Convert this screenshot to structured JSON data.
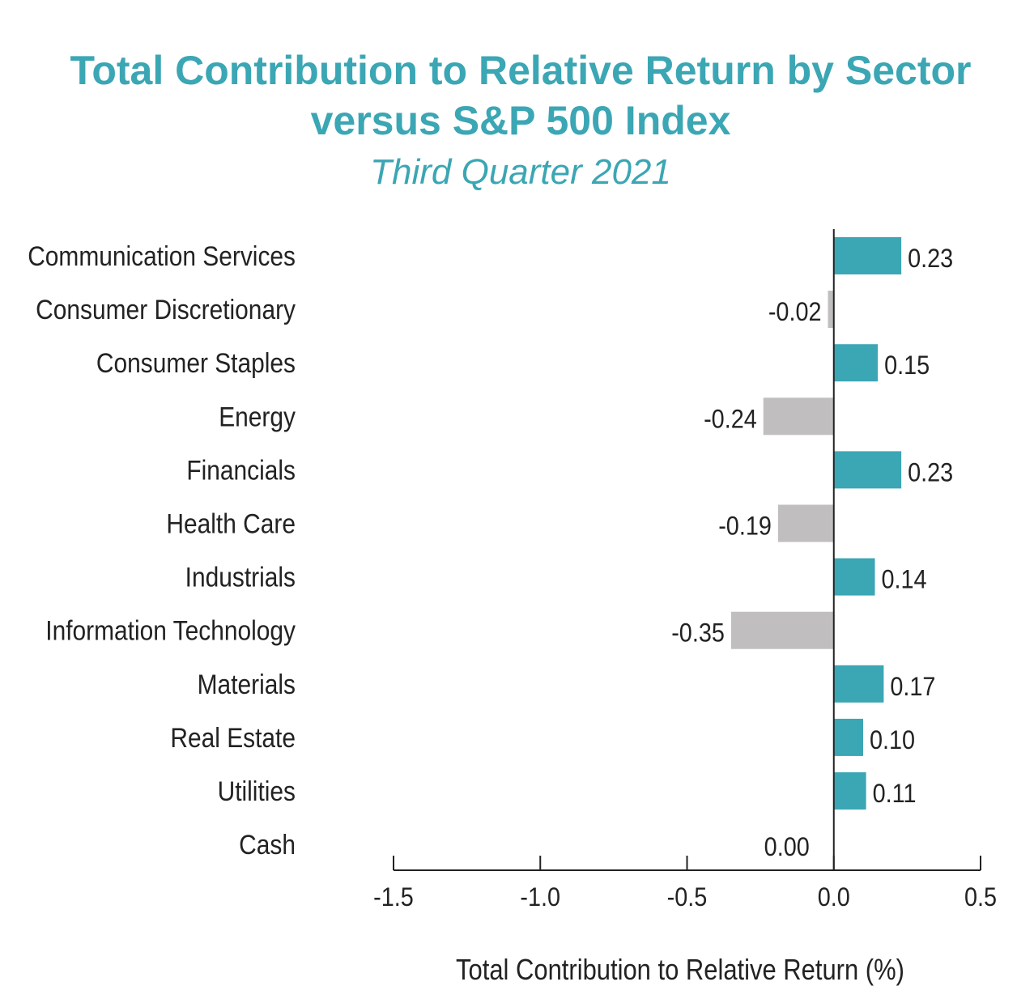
{
  "chart_data": {
    "type": "bar",
    "orientation": "horizontal",
    "title": "Total Contribution to Relative Return by Sector versus S&P 500 Index",
    "title_line1": "Total Contribution to Relative Return by Sector",
    "title_line2": "versus S&P 500 Index",
    "subtitle": "Third Quarter 2021",
    "xlabel": "Total Contribution to Relative Return (%)",
    "ylabel": "",
    "xlim": [
      -1.5,
      0.5
    ],
    "xticks": [
      -1.5,
      -1.0,
      -0.5,
      0.0,
      0.5
    ],
    "xtick_labels": [
      "-1.5",
      "-1.0",
      "-0.5",
      "0.0",
      "0.5"
    ],
    "grid": false,
    "categories": [
      "Communication Services",
      "Consumer Discretionary",
      "Consumer Staples",
      "Energy",
      "Financials",
      "Health Care",
      "Industrials",
      "Information Technology",
      "Materials",
      "Real Estate",
      "Utilities",
      "Cash"
    ],
    "values": [
      0.23,
      -0.02,
      0.15,
      -0.24,
      0.23,
      -0.19,
      0.14,
      -0.35,
      0.17,
      0.1,
      0.11,
      0.0
    ],
    "data_labels": [
      "0.23",
      "-0.02",
      "0.15",
      "-0.24",
      "0.23",
      "-0.19",
      "0.14",
      "-0.35",
      "0.17",
      "0.10",
      "0.11",
      "0.00"
    ],
    "colors": {
      "positive": "#3ba6b4",
      "negative": "#c0bebf",
      "axis": "#222222"
    }
  }
}
